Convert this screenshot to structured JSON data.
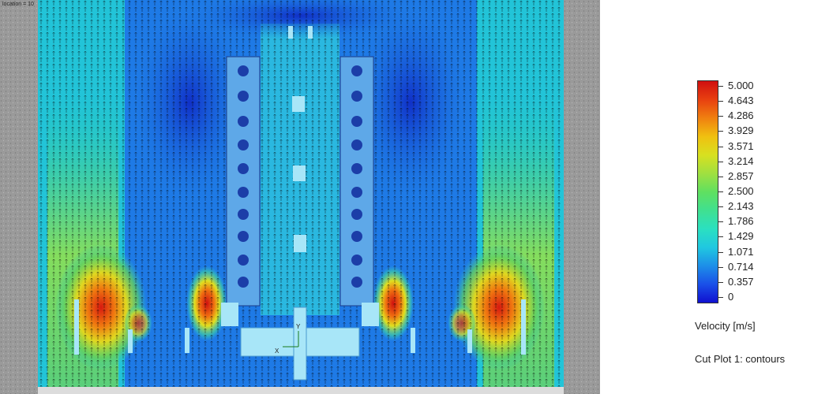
{
  "viewport": {
    "location_text": "location = 10",
    "axis_labels": {
      "x": "X",
      "y": "Y"
    }
  },
  "legend": {
    "title": "Velocity [m/s]",
    "ticks": [
      "5.000",
      "4.643",
      "4.286",
      "3.929",
      "3.571",
      "3.214",
      "2.857",
      "2.500",
      "2.143",
      "1.786",
      "1.429",
      "1.071",
      "0.714",
      "0.357",
      "0"
    ],
    "colormap": [
      "#1010d0",
      "#1a50e8",
      "#1d8fe8",
      "#20c8e0",
      "#2be0c0",
      "#40e090",
      "#60e060",
      "#a0e040",
      "#d8e020",
      "#f0c010",
      "#f08010",
      "#e84010",
      "#d01010"
    ]
  },
  "plot_label": "Cut Plot 1: contours",
  "colors": {
    "domain_border": "#8a8a8a",
    "solid_fill": "#5fb4f0",
    "solid_fill_light": "#a8e6f8"
  }
}
